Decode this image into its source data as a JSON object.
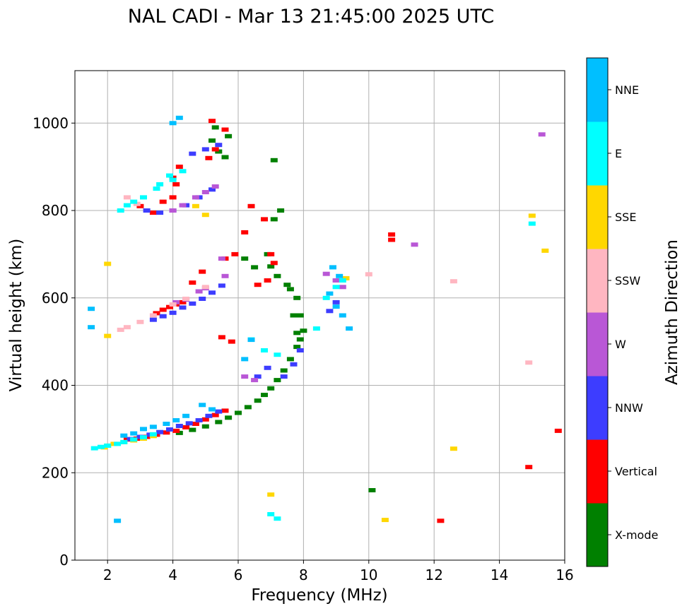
{
  "chart_data": {
    "type": "scatter",
    "title": "NAL CADI - Mar 13 21:45:00 2025 UTC",
    "xlabel": "Frequency (MHz)",
    "ylabel": "Virtual height (km)",
    "xlim": [
      1.0,
      16.0
    ],
    "ylim": [
      0,
      1120
    ],
    "xticks": [
      2,
      4,
      6,
      8,
      10,
      12,
      14,
      16
    ],
    "yticks": [
      0,
      200,
      400,
      600,
      800,
      1000
    ],
    "grid": true,
    "colorbar": {
      "label": "Azimuth Direction",
      "categories": [
        {
          "name": "X-mode",
          "color": "#008000"
        },
        {
          "name": "Vertical",
          "color": "#ff0000"
        },
        {
          "name": "NNW",
          "color": "#3d3dff"
        },
        {
          "name": "W",
          "color": "#b957d6"
        },
        {
          "name": "SSW",
          "color": "#ffb6c1"
        },
        {
          "name": "SSE",
          "color": "#ffd700"
        },
        {
          "name": "E",
          "color": "#00ffff"
        },
        {
          "name": "NNE",
          "color": "#00bfff"
        }
      ]
    },
    "series": [
      {
        "name": "X-mode",
        "x": [
          4.2,
          4.6,
          5.0,
          5.4,
          5.7,
          6.0,
          6.3,
          6.6,
          6.8,
          7.0,
          7.2,
          7.4,
          7.6,
          7.8,
          7.9,
          8.0,
          7.9,
          7.8,
          7.5,
          7.2,
          7.0,
          6.9,
          6.5,
          6.2,
          7.1,
          7.3,
          7.6,
          7.7,
          7.8,
          5.2,
          5.4,
          5.6,
          5.3,
          5.7,
          7.1,
          10.1
        ],
        "y": [
          291,
          298,
          306,
          316,
          326,
          337,
          350,
          365,
          378,
          393,
          412,
          434,
          460,
          488,
          505,
          525,
          560,
          600,
          630,
          650,
          672,
          700,
          670,
          690,
          780,
          800,
          620,
          560,
          520,
          960,
          935,
          922,
          990,
          970,
          915,
          160
        ]
      },
      {
        "name": "Vertical",
        "x": [
          2.6,
          2.9,
          3.2,
          3.5,
          3.8,
          4.1,
          4.4,
          4.7,
          5.0,
          5.3,
          5.6,
          3.5,
          3.7,
          3.9,
          4.1,
          4.3,
          4.1,
          4.0,
          4.2,
          5.1,
          5.3,
          6.4,
          6.8,
          7.0,
          7.1,
          6.9,
          6.6,
          5.9,
          5.6,
          4.9,
          4.6,
          10.7,
          10.7,
          14.9,
          15.8,
          12.2,
          6.2,
          5.5,
          5.8,
          3.0,
          3.4,
          3.7,
          4.0,
          5.2,
          5.6
        ],
        "y": [
          276,
          278,
          282,
          287,
          292,
          296,
          304,
          312,
          322,
          332,
          342,
          565,
          573,
          579,
          585,
          590,
          860,
          875,
          900,
          920,
          940,
          810,
          780,
          700,
          680,
          640,
          630,
          700,
          690,
          660,
          635,
          745,
          733,
          213,
          296,
          90,
          750,
          510,
          500,
          810,
          795,
          820,
          830,
          1005,
          985
        ]
      },
      {
        "name": "NNW",
        "x": [
          2.7,
          3.0,
          3.3,
          3.6,
          3.9,
          4.2,
          4.5,
          4.8,
          5.1,
          5.4,
          3.4,
          3.7,
          4.0,
          4.3,
          4.6,
          4.9,
          5.2,
          5.5,
          3.2,
          3.6,
          4.0,
          4.4,
          4.8,
          5.2,
          4.6,
          5.0,
          5.4,
          7.4,
          7.7,
          7.9,
          8.8,
          9.0,
          6.6,
          6.9
        ],
        "y": [
          277,
          282,
          287,
          293,
          299,
          307,
          313,
          320,
          330,
          340,
          550,
          558,
          566,
          578,
          587,
          598,
          612,
          628,
          800,
          795,
          800,
          812,
          830,
          848,
          930,
          940,
          950,
          420,
          448,
          480,
          570,
          590,
          420,
          440
        ]
      },
      {
        "name": "W",
        "x": [
          4.0,
          4.3,
          4.7,
          5.0,
          5.3,
          5.6,
          4.1,
          4.4,
          4.8,
          5.0,
          5.5,
          8.7,
          9.0,
          9.2,
          11.4,
          15.3,
          6.2,
          6.5
        ],
        "y": [
          800,
          812,
          830,
          842,
          855,
          650,
          590,
          596,
          615,
          622,
          690,
          655,
          640,
          625,
          722,
          974,
          420,
          412
        ]
      },
      {
        "name": "SSW",
        "x": [
          2.4,
          2.6,
          3.0,
          3.4,
          4.0,
          4.4,
          5.0,
          10.0,
          12.6,
          14.9,
          2.6,
          2.9
        ],
        "y": [
          527,
          533,
          545,
          560,
          585,
          598,
          625,
          654,
          638,
          452,
          830,
          815
        ]
      },
      {
        "name": "SSE",
        "x": [
          1.9,
          2.0,
          2.2,
          2.5,
          2.8,
          3.1,
          3.4,
          15.0,
          15.4,
          12.6,
          10.5,
          7.0,
          2.0,
          4.7,
          5.0,
          9.3,
          2.0
        ],
        "y": [
          258,
          262,
          266,
          270,
          274,
          278,
          284,
          788,
          708,
          255,
          92,
          150,
          678,
          810,
          790,
          645,
          513
        ]
      },
      {
        "name": "E",
        "x": [
          1.6,
          1.8,
          2.0,
          2.3,
          2.5,
          2.8,
          3.1,
          3.4,
          2.4,
          2.6,
          2.8,
          3.1,
          3.5,
          4.0,
          4.3,
          15.0,
          8.4,
          8.7,
          9.0,
          9.2,
          7.0,
          7.2,
          6.4,
          6.8,
          7.2,
          3.6,
          3.9
        ],
        "y": [
          256,
          259,
          262,
          266,
          270,
          276,
          281,
          288,
          800,
          812,
          820,
          830,
          850,
          870,
          890,
          770,
          530,
          600,
          625,
          640,
          105,
          95,
          505,
          480,
          470,
          860,
          880
        ]
      },
      {
        "name": "NNE",
        "x": [
          1.5,
          1.5,
          2.3,
          4.0,
          4.2,
          2.5,
          2.8,
          3.1,
          3.4,
          3.8,
          4.1,
          4.4,
          6.4,
          6.2,
          8.8,
          9.0,
          9.2,
          9.4,
          8.9,
          9.1,
          4.9,
          5.2
        ],
        "y": [
          575,
          533,
          90,
          1000,
          1012,
          285,
          290,
          300,
          305,
          312,
          320,
          330,
          504,
          460,
          610,
          580,
          560,
          530,
          670,
          650,
          355,
          345
        ]
      }
    ]
  }
}
